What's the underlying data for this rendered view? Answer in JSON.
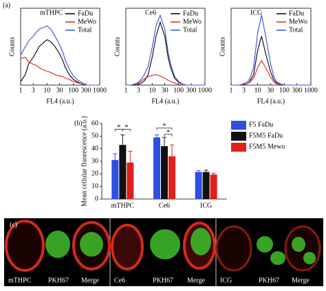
{
  "panel_labels": [
    "(a)",
    "(b)",
    "(c)"
  ],
  "chart_data": [
    {
      "type": "line",
      "title": "mTHPC",
      "x_label": "FL4 (a.u.)",
      "y_label": "Counts",
      "xscale": "log",
      "xlim": [
        1,
        1000
      ],
      "xticks": [
        1,
        3,
        10,
        30,
        100,
        300,
        1000
      ],
      "ylim": [
        0,
        110
      ],
      "x": [
        1,
        1.5,
        2,
        3,
        4,
        5,
        7,
        10,
        14,
        20,
        30,
        40,
        50,
        70,
        100,
        150,
        200,
        300,
        500,
        1000
      ],
      "series": [
        {
          "name": "FaDu",
          "color": "#000000",
          "values": [
            5,
            15,
            30,
            40,
            48,
            55,
            60,
            65,
            62,
            55,
            45,
            35,
            25,
            15,
            8,
            4,
            2,
            0,
            0,
            0
          ]
        },
        {
          "name": "MeWo",
          "color": "#e0201b",
          "values": [
            38,
            40,
            33,
            30,
            28,
            25,
            22,
            20,
            18,
            15,
            13,
            12,
            10,
            8,
            5,
            3,
            2,
            0,
            0,
            0
          ]
        },
        {
          "name": "Total",
          "color": "#2f4fe0",
          "values": [
            43,
            55,
            63,
            70,
            76,
            80,
            82,
            85,
            80,
            70,
            58,
            47,
            35,
            23,
            13,
            7,
            4,
            0,
            0,
            0
          ]
        }
      ]
    },
    {
      "type": "line",
      "title": "Ce6",
      "x_label": "FL4 (a.u.)",
      "y_label": "Counts",
      "xscale": "log",
      "xlim": [
        1,
        1000
      ],
      "xticks": [
        1,
        3,
        10,
        30,
        100,
        300,
        1000
      ],
      "ylim": [
        0,
        110
      ],
      "x": [
        1,
        1.5,
        2,
        3,
        4,
        5,
        7,
        10,
        14,
        20,
        30,
        40,
        50,
        70,
        100,
        150,
        200,
        300,
        500,
        1000
      ],
      "series": [
        {
          "name": "FaDu",
          "color": "#000000",
          "values": [
            0,
            0,
            0,
            1,
            3,
            6,
            15,
            40,
            70,
            90,
            70,
            40,
            25,
            10,
            4,
            1,
            0,
            0,
            0,
            0
          ]
        },
        {
          "name": "MeWo",
          "color": "#e0201b",
          "values": [
            0,
            0,
            1,
            3,
            6,
            9,
            12,
            14,
            15,
            13,
            10,
            7,
            5,
            3,
            1,
            0,
            0,
            0,
            0,
            0
          ]
        },
        {
          "name": "Total",
          "color": "#2f4fe0",
          "values": [
            0,
            0,
            1,
            4,
            9,
            15,
            27,
            54,
            85,
            100,
            80,
            47,
            30,
            13,
            5,
            1,
            0,
            0,
            0,
            0
          ]
        }
      ]
    },
    {
      "type": "line",
      "title": "ICG",
      "x_label": "FL4 (a.u.)",
      "y_label": "Counts",
      "xscale": "log",
      "xlim": [
        1,
        1000
      ],
      "xticks": [
        1,
        3,
        10,
        30,
        100,
        300,
        1000
      ],
      "ylim": [
        0,
        110
      ],
      "x": [
        1,
        1.5,
        2,
        3,
        4,
        5,
        7,
        10,
        14,
        20,
        30,
        40,
        50,
        70,
        100,
        150,
        200,
        300,
        500,
        1000
      ],
      "series": [
        {
          "name": "FaDu",
          "color": "#000000",
          "values": [
            0,
            0,
            0,
            1,
            2,
            5,
            15,
            50,
            70,
            45,
            20,
            8,
            3,
            1,
            0,
            0,
            0,
            0,
            0,
            0
          ]
        },
        {
          "name": "MeWo",
          "color": "#e0201b",
          "values": [
            0,
            0,
            0,
            1,
            2,
            4,
            10,
            25,
            35,
            25,
            12,
            5,
            2,
            1,
            0,
            0,
            0,
            0,
            0,
            0
          ]
        },
        {
          "name": "Total",
          "color": "#2f4fe0",
          "values": [
            0,
            0,
            0,
            2,
            4,
            9,
            25,
            75,
            100,
            70,
            32,
            13,
            5,
            2,
            0,
            0,
            0,
            0,
            0,
            0
          ]
        }
      ]
    },
    {
      "type": "bar",
      "y_label": "Mean cellular fluorescence (a.u.)",
      "categories": [
        "mTHPC",
        "Ce6",
        "ICG"
      ],
      "ylim": [
        0,
        60
      ],
      "yticks": [
        0,
        10,
        20,
        30,
        40,
        50,
        60
      ],
      "series": [
        {
          "name": "F5 FaDu",
          "color": "#2f4fe0",
          "values": [
            31,
            49,
            21.5
          ],
          "errors": [
            5,
            2,
            1
          ]
        },
        {
          "name": "F5M5 FaDu",
          "color": "#111111",
          "values": [
            43,
            42,
            21.5
          ],
          "errors": [
            8,
            7,
            1.5
          ]
        },
        {
          "name": "F5M5 Mewo",
          "color": "#e0201b",
          "values": [
            29,
            34,
            19.5
          ],
          "errors": [
            9,
            9,
            1
          ]
        }
      ],
      "annotations": [
        "*",
        "*",
        "*",
        "*"
      ]
    }
  ],
  "images": {
    "labels": [
      "mTHPC",
      "PKH67",
      "Merge",
      "Ce6",
      "PKH67",
      "Merge",
      "ICG",
      "PKH67",
      "Merge"
    ]
  }
}
